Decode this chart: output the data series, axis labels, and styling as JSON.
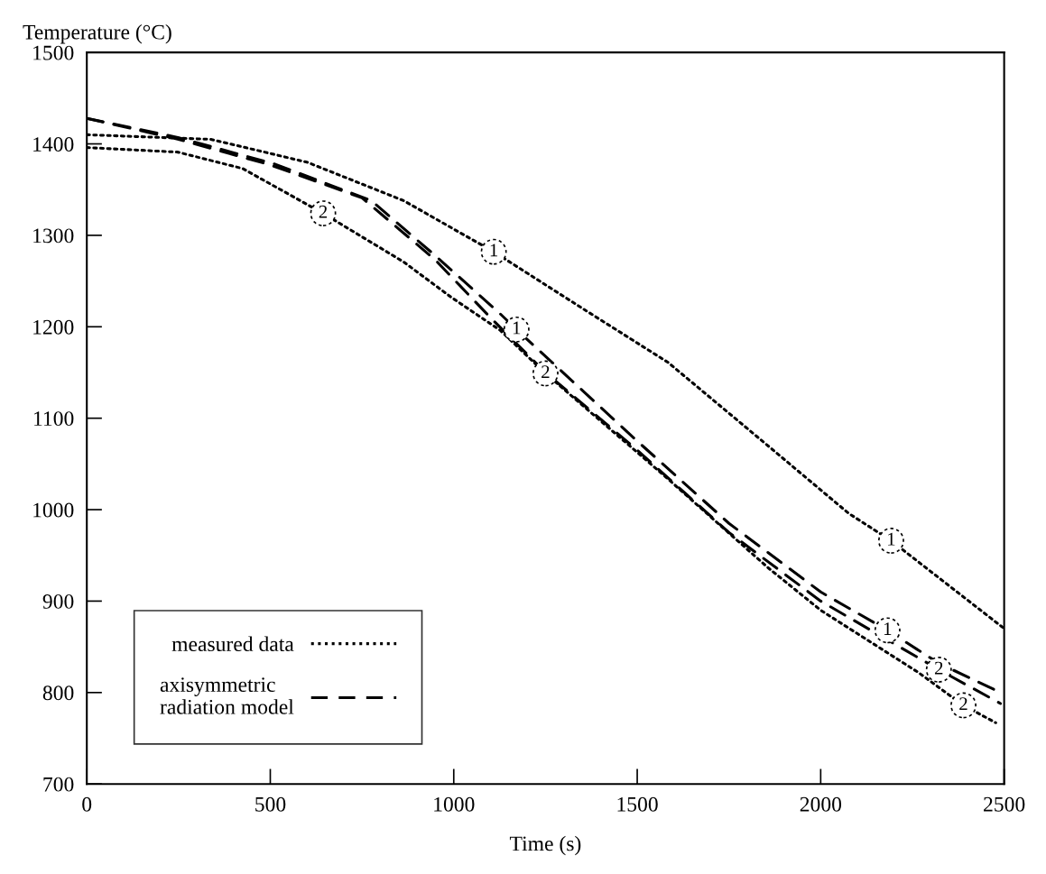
{
  "chart_data": {
    "type": "line",
    "xlabel": "Time (s)",
    "ylabel": "Temperature (°C)",
    "xlim": [
      0,
      2500
    ],
    "xticks": [
      0,
      500,
      1000,
      1500,
      2000,
      2500
    ],
    "ylim": [
      700,
      1500
    ],
    "yticks": [
      700,
      800,
      900,
      1000,
      1100,
      1200,
      1300,
      1400,
      1500
    ],
    "grid": false,
    "legend": "bottom left",
    "marker": "none",
    "series": [
      {
        "name": "measured data",
        "color": "#000000",
        "line_style": "dotted",
        "x": [
          0,
          337,
          600,
          863,
          1109,
          1355,
          1584,
          1850,
          2076,
          2192,
          2500
        ],
        "values": [
          1410,
          1405,
          1380,
          1338,
          1282,
          1219,
          1161,
          1072,
          996,
          966,
          870
        ]
      },
      {
        "color": "#000000",
        "line_style": "dotted",
        "x": [
          0,
          248,
          425,
          644,
          863,
          994,
          1127,
          1250,
          1577,
          1855,
          2000,
          2266,
          2389,
          2477
        ],
        "values": [
          1396,
          1391,
          1373,
          1324,
          1271,
          1232,
          1196,
          1149,
          1036,
          937,
          890,
          822,
          786,
          767
        ]
      },
      {
        "name": "axisymmetric\nradiation model",
        "color": "#000000",
        "line_style": "dashed",
        "x": [
          0,
          248,
          512,
          775,
          952,
          1127,
          1171,
          1500,
          1750,
          2000,
          2182,
          2322,
          2490
        ],
        "values": [
          1428,
          1407,
          1378,
          1338,
          1277,
          1214,
          1197,
          1075,
          985,
          910,
          868,
          832,
          800
        ]
      },
      {
        "color": "#000000",
        "line_style": "dashed",
        "x": [
          0,
          250,
          500,
          750,
          950,
          1100,
          1250,
          1500,
          1750,
          2000,
          2322,
          2490
        ],
        "values": [
          1428,
          1405,
          1377,
          1341,
          1273,
          1210,
          1150,
          1065,
          975,
          900,
          825,
          788
        ]
      }
    ],
    "annotations": [
      {
        "text": "1",
        "x": 1109,
        "y": 1282
      },
      {
        "text": "2",
        "x": 644,
        "y": 1324
      },
      {
        "text": "1",
        "x": 1171,
        "y": 1197
      },
      {
        "text": "2",
        "x": 1250,
        "y": 1149
      },
      {
        "text": "1",
        "x": 2192,
        "y": 966
      },
      {
        "text": "1",
        "x": 2182,
        "y": 868
      },
      {
        "text": "2",
        "x": 2322,
        "y": 825
      },
      {
        "text": "2",
        "x": 2389,
        "y": 786
      }
    ]
  }
}
